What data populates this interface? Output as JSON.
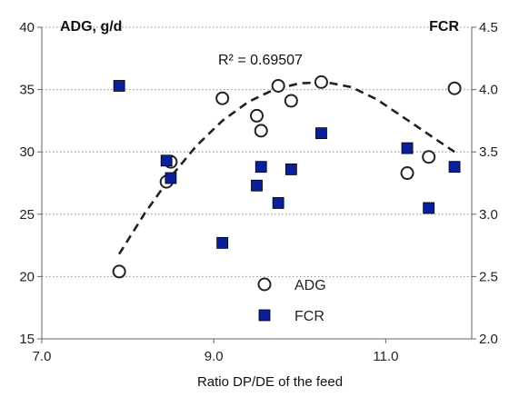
{
  "chart_data": {
    "type": "scatter",
    "xlabel": "Ratio DP/DE of the feed",
    "ylabel_left": "ADG, g/d",
    "ylabel_right": "FCR",
    "xlim": [
      7.0,
      12.0
    ],
    "ylim_left": [
      15,
      40
    ],
    "ylim_right": [
      2.0,
      4.5
    ],
    "x_ticks": [
      "7.0",
      "9.0",
      "11.0"
    ],
    "y_left_ticks": [
      "15",
      "20",
      "25",
      "30",
      "35",
      "40"
    ],
    "y_right_ticks": [
      "2.0",
      "2.5",
      "3.0",
      "3.5",
      "4.0",
      "4.5"
    ],
    "grid": "horizontal dotted",
    "legend": "bottom-center",
    "series": [
      {
        "name": "ADG",
        "axis": "left",
        "marker": "open-circle",
        "color": "#222222",
        "points": [
          {
            "x": 7.9,
            "y": 20.4
          },
          {
            "x": 8.45,
            "y": 27.6
          },
          {
            "x": 8.5,
            "y": 29.2
          },
          {
            "x": 9.1,
            "y": 34.3
          },
          {
            "x": 9.5,
            "y": 32.9
          },
          {
            "x": 9.55,
            "y": 31.7
          },
          {
            "x": 9.75,
            "y": 35.3
          },
          {
            "x": 9.9,
            "y": 34.1
          },
          {
            "x": 10.25,
            "y": 35.6
          },
          {
            "x": 11.25,
            "y": 28.3
          },
          {
            "x": 11.5,
            "y": 29.6
          },
          {
            "x": 11.8,
            "y": 35.1
          }
        ]
      },
      {
        "name": "FCR",
        "axis": "right",
        "marker": "filled-square",
        "color": "#0a1f9c",
        "points": [
          {
            "x": 7.9,
            "y": 4.03
          },
          {
            "x": 8.45,
            "y": 3.43
          },
          {
            "x": 8.5,
            "y": 3.29
          },
          {
            "x": 9.1,
            "y": 2.77
          },
          {
            "x": 9.5,
            "y": 3.23
          },
          {
            "x": 9.55,
            "y": 3.38
          },
          {
            "x": 9.75,
            "y": 3.09
          },
          {
            "x": 9.9,
            "y": 3.36
          },
          {
            "x": 10.25,
            "y": 3.65
          },
          {
            "x": 11.25,
            "y": 3.53
          },
          {
            "x": 11.5,
            "y": 3.05
          },
          {
            "x": 11.8,
            "y": 3.38
          }
        ]
      }
    ],
    "trendline": {
      "series": "ADG",
      "style": "dashed quadratic",
      "x_range": [
        7.9,
        11.8
      ],
      "points": [
        {
          "x": 7.9,
          "y": 21.8
        },
        {
          "x": 8.2,
          "y": 25.1
        },
        {
          "x": 8.5,
          "y": 28.0
        },
        {
          "x": 8.8,
          "y": 30.5
        },
        {
          "x": 9.1,
          "y": 32.5
        },
        {
          "x": 9.4,
          "y": 34.0
        },
        {
          "x": 9.7,
          "y": 35.0
        },
        {
          "x": 10.0,
          "y": 35.5
        },
        {
          "x": 10.3,
          "y": 35.6
        },
        {
          "x": 10.6,
          "y": 35.2
        },
        {
          "x": 10.9,
          "y": 34.2
        },
        {
          "x": 11.2,
          "y": 32.8
        },
        {
          "x": 11.5,
          "y": 31.4
        },
        {
          "x": 11.8,
          "y": 30.0
        }
      ],
      "label": "R² = 0.69507"
    }
  }
}
